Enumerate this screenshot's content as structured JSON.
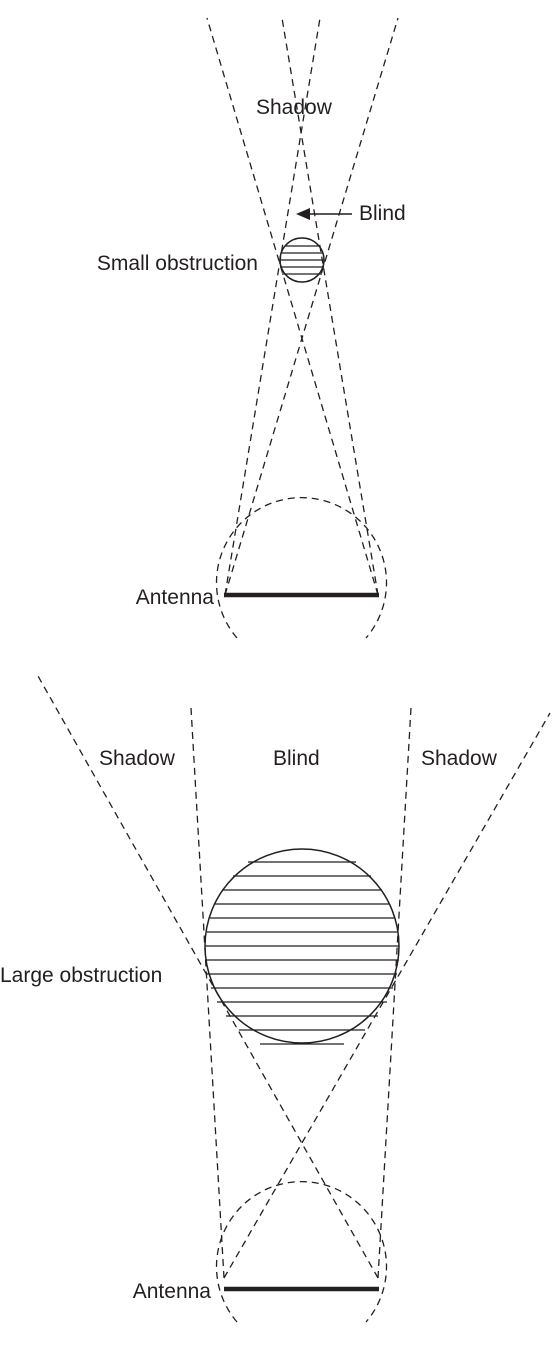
{
  "top_panel": {
    "shadow_label": "Shadow",
    "blind_label": "Blind",
    "obstruction_label": "Small obstruction",
    "antenna_label": "Antenna"
  },
  "bottom_panel": {
    "shadow_left_label": "Shadow",
    "blind_label": "Blind",
    "shadow_right_label": "Shadow",
    "obstruction_label": "Large obstruction",
    "antenna_label": "Antenna"
  }
}
